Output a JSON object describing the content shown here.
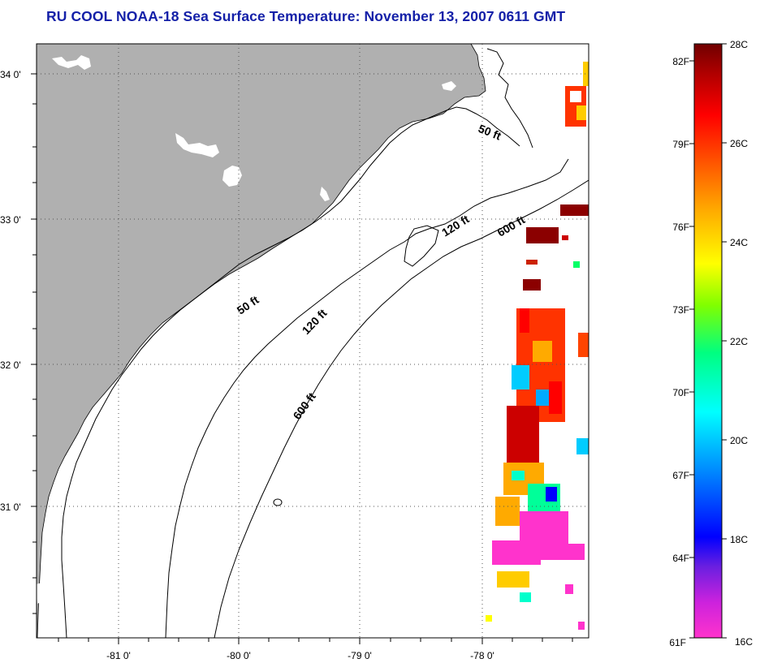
{
  "title": "RU COOL  NOAA-18  Sea Surface Temperature:  November 13, 2007 0611 GMT",
  "map": {
    "lat_labels": [
      "34 0'",
      "33 0'",
      "32 0'",
      "31 0'"
    ],
    "lon_labels": [
      "-81 0'",
      "-80 0'",
      "-79 0'",
      "-78 0'"
    ],
    "contour_labels": {
      "c50_a": "50 ft",
      "c50_b": "50 ft",
      "c120_a": "120 ft",
      "c120_b": "120 ft",
      "c600_a": "600 ft",
      "c600_b": "600 ft"
    },
    "colors": {
      "land": "#b0b0b0",
      "grid": "#555555",
      "title": "#1420a8"
    }
  },
  "colorbar": {
    "fahrenheit_labels": [
      "82F",
      "79F",
      "76F",
      "73F",
      "70F",
      "67F",
      "64F",
      "61F"
    ],
    "celsius_labels": [
      "28C",
      "26C",
      "24C",
      "22C",
      "20C",
      "18C",
      "16C"
    ],
    "range_c": [
      16,
      28
    ],
    "colors": [
      "#ff33cc",
      "#a020f0",
      "#0000ff",
      "#00aaff",
      "#00ffff",
      "#00ff66",
      "#88ff00",
      "#ffff00",
      "#ffaa00",
      "#ff6600",
      "#ff0000",
      "#cc0000",
      "#800000"
    ]
  }
}
